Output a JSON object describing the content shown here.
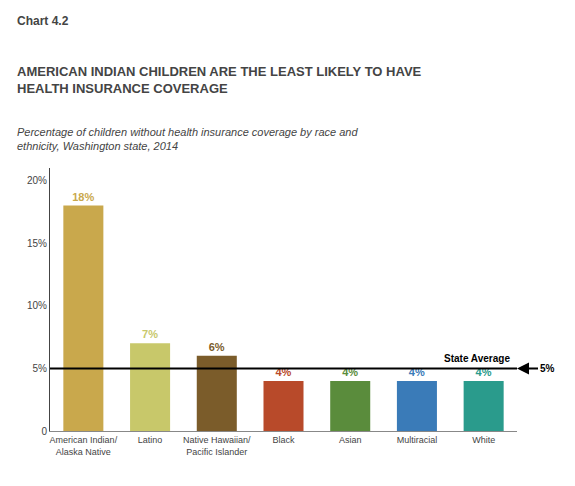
{
  "chart_data": {
    "type": "bar",
    "chart_label": "Chart 4.2",
    "title": "AMERICAN INDIAN CHILDREN ARE THE LEAST LIKELY TO HAVE\nHEALTH INSURANCE COVERAGE",
    "subtitle": "Percentage of children without health insurance coverage by race and\nethnicity, Washington state, 2014",
    "categories": [
      "American Indian/\nAlaska Native",
      "Latino",
      "Native Hawaiian/\nPacific Islander",
      "Black",
      "Asian",
      "Multiracial",
      "White"
    ],
    "values": [
      18,
      7,
      6,
      4,
      4,
      4,
      4
    ],
    "value_labels": [
      "18%",
      "7%",
      "6%",
      "4%",
      "4%",
      "4%",
      "4%"
    ],
    "colors": [
      "#C9A84C",
      "#C8C86A",
      "#7B5C2A",
      "#B84A2A",
      "#5A8C3C",
      "#3A7BB8",
      "#2A9B8C"
    ],
    "data_labels": true,
    "ylim": [
      0,
      21
    ],
    "yticks": [
      0,
      {
        "value": 5,
        "label": "5%"
      },
      {
        "value": 10,
        "label": "10%"
      },
      {
        "value": 15,
        "label": "15%"
      },
      {
        "value": 20,
        "label": "20%"
      }
    ],
    "grid": false,
    "reference_line": {
      "value": 5,
      "label": "State Average",
      "annotation": "5%"
    }
  }
}
